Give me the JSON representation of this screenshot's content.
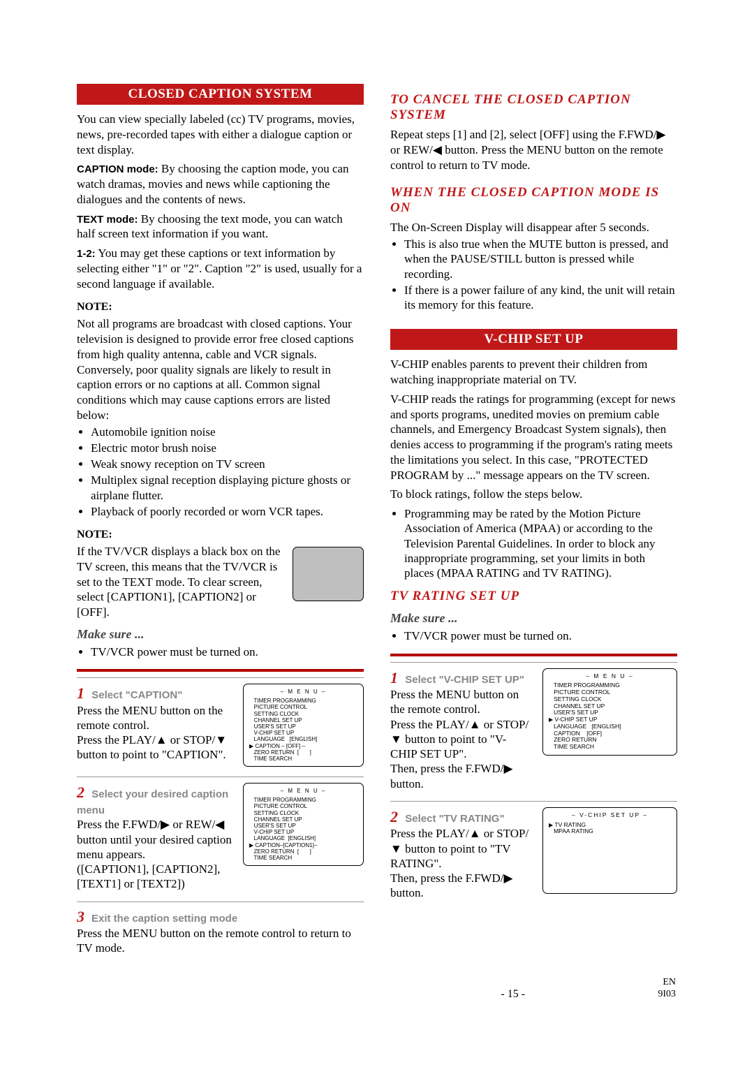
{
  "left": {
    "banner": "CLOSED CAPTION SYSTEM",
    "intro": "You can view specially labeled (cc) TV programs, movies, news, pre-recorded tapes with either a dialogue caption or text display.",
    "caption_mode_label": "CAPTION mode:",
    "caption_mode_text": " By choosing the caption mode, you can watch dramas, movies and news while captioning the dialogues and the contents of news.",
    "text_mode_label": "TEXT mode:",
    "text_mode_text": " By choosing the text mode, you can watch half screen text information if you want.",
    "one_two_label": "1-2:",
    "one_two_text": " You may get these captions or text information by selecting either \"1\" or \"2\". Caption \"2\" is used, usually for a second language if available.",
    "note1_head": "NOTE:",
    "note1_body": "Not all programs are broadcast with closed captions. Your television is designed to provide error free closed captions from high quality antenna, cable and VCR signals. Conversely, poor quality signals are likely to result in caption errors or no captions at all. Common signal conditions which may cause captions errors are listed below:",
    "note1_bullets": [
      "Automobile ignition noise",
      "Electric motor brush noise",
      "Weak snowy reception on TV screen",
      "Multiplex signal reception displaying picture ghosts or airplane flutter.",
      "Playback of poorly recorded or worn VCR tapes."
    ],
    "note2_head": "NOTE:",
    "note2_body": "If the TV/VCR displays a black box on the TV screen, this means that the TV/VCR is set to the TEXT mode. To clear screen, select [CAPTION1], [CAPTION2] or [OFF].",
    "makesure_head": "Make sure ...",
    "makesure_bullet": "TV/VCR power must be turned on.",
    "step1_num": "1",
    "step1_title": "Select \"CAPTION\"",
    "step1_body1": "Press the MENU button on the remote control.",
    "step1_body2": "Press the PLAY/▲ or STOP/▼ button to point to \"CAPTION\".",
    "step2_num": "2",
    "step2_title": "Select your desired caption menu",
    "step2_body1": "Press the F.FWD/▶ or REW/◀ button until your desired caption menu appears.",
    "step2_body2": "([CAPTION1], [CAPTION2], [TEXT1] or [TEXT2])",
    "step3_num": "3",
    "step3_title": "Exit the caption setting mode",
    "step3_body": "Press the MENU button on the remote control to return to TV mode.",
    "menu1": {
      "title": "– M E N U –",
      "items": [
        "TIMER PROGRAMMING",
        "PICTURE CONTROL",
        "SETTING CLOCK",
        "CHANNEL SET UP",
        "USER'S SET UP",
        "V-CHIP SET UP",
        "LANGUAGE   [ENGLISH]",
        "CAPTION – [OFF] –",
        "ZERO RETURN  [       ]",
        "TIME SEARCH"
      ],
      "sel_index": 7
    },
    "menu2": {
      "title": "– M E N U –",
      "items": [
        "TIMER PROGRAMMING",
        "PICTURE CONTROL",
        "SETTING CLOCK",
        "CHANNEL SET UP",
        "USER'S SET UP",
        "V-CHIP SET UP",
        "LANGUAGE  [ENGLISH]",
        "CAPTION–[CAPTION1]–",
        "ZERO RETURN  [       ]",
        "TIME SEARCH"
      ],
      "sel_index": 7
    }
  },
  "right": {
    "cancel_head": "TO CANCEL THE CLOSED CAPTION SYSTEM",
    "cancel_body": "Repeat steps [1] and [2], select [OFF] using the F.FWD/▶ or REW/◀ button. Press the MENU button on the remote control to return to TV mode.",
    "when_head": "WHEN THE CLOSED CAPTION MODE IS ON",
    "when_body": "The On-Screen Display will disappear after 5 seconds.",
    "when_bullets": [
      "This is also true when the MUTE button is pressed, and when the PAUSE/STILL button is pressed while recording.",
      "If there is a power failure of any kind, the unit will retain its memory for this feature."
    ],
    "banner": "V-CHIP SET UP",
    "vchip_p1": "V-CHIP enables parents to prevent their children from watching inappropriate material on TV.",
    "vchip_p2": "V-CHIP reads the ratings for programming (except for news and sports programs, unedited movies on premium cable channels, and Emergency Broadcast System signals), then denies access to programming if the program's rating meets the limitations you select. In this case, \"PROTECTED PROGRAM by ...\" message appears on the TV screen.",
    "vchip_p3": "To block ratings, follow the steps below.",
    "vchip_bullet": "Programming may be rated by the Motion Picture Association of America (MPAA) or according to the Television Parental Guidelines. In order to block any inappropriate programming, set your limits in both places (MPAA RATING and TV RATING).",
    "tvrating_head": "TV RATING SET UP",
    "makesure_head": "Make sure ...",
    "makesure_bullet": "TV/VCR power must be turned on.",
    "step1_num": "1",
    "step1_title": "Select \"V-CHIP SET UP\"",
    "step1_body1": "Press the MENU button on the remote control.",
    "step1_body2": "Press the PLAY/▲ or STOP/▼ button to point to \"V-CHIP SET UP\".",
    "step1_body3": "Then, press the F.FWD/▶ button.",
    "step2_num": "2",
    "step2_title": "Select \"TV RATING\"",
    "step2_body1": "Press the PLAY/▲ or STOP/▼ button to point to \"TV RATING\".",
    "step2_body2": "Then, press the F.FWD/▶ button.",
    "menu1": {
      "title": "– M E N U –",
      "items": [
        "TIMER PROGRAMMING",
        "PICTURE CONTROL",
        "SETTING CLOCK",
        "CHANNEL SET UP",
        "USER'S SET UP",
        "V-CHIP SET UP",
        "LANGUAGE   [ENGLISH]",
        "CAPTION    [OFF]",
        "ZERO RETURN",
        "TIME SEARCH"
      ],
      "sel_index": 5
    },
    "menu2": {
      "title": "– V-CHIP SET UP –",
      "items": [
        "TV RATING",
        "MPAA RATING"
      ],
      "sel_index": 0
    }
  },
  "footer": {
    "page": "- 15 -",
    "lang": "EN",
    "code": "9I03"
  }
}
